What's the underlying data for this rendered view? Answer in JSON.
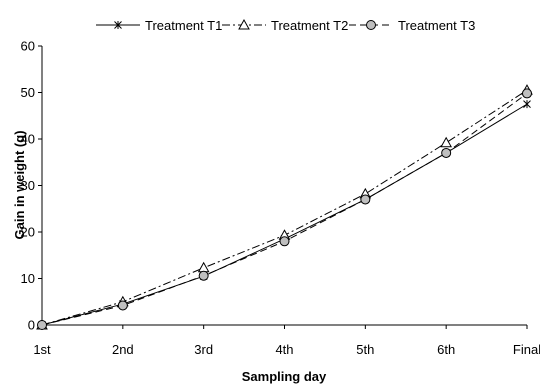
{
  "chart_data": {
    "type": "line",
    "categories": [
      "1st",
      "2nd",
      "3rd",
      "4th",
      "5th",
      "6th",
      "Final"
    ],
    "series": [
      {
        "name": "Treatment T1",
        "marker": "x",
        "dash": "solid",
        "values": [
          0,
          4.5,
          10.5,
          18.5,
          27,
          37,
          47.5
        ]
      },
      {
        "name": "Treatment T2",
        "marker": "triangle",
        "dash": "dash-dot",
        "values": [
          0,
          5.0,
          12.3,
          19.3,
          28.2,
          39.2,
          50.5
        ]
      },
      {
        "name": "Treatment T3",
        "marker": "circle",
        "dash": "dash",
        "values": [
          0,
          4.2,
          10.6,
          18.0,
          27.0,
          37.0,
          49.8
        ]
      }
    ],
    "xlabel": "Sampling day",
    "ylabel": "Gain in weight (g)",
    "ylim": [
      0,
      60
    ],
    "yticks": [
      0,
      10,
      20,
      30,
      40,
      50,
      60
    ],
    "grid": false,
    "legend": "top",
    "colors": {
      "line": "#000000",
      "marker_fill": "#bfbfbf",
      "marker_open": "#ffffff"
    }
  }
}
